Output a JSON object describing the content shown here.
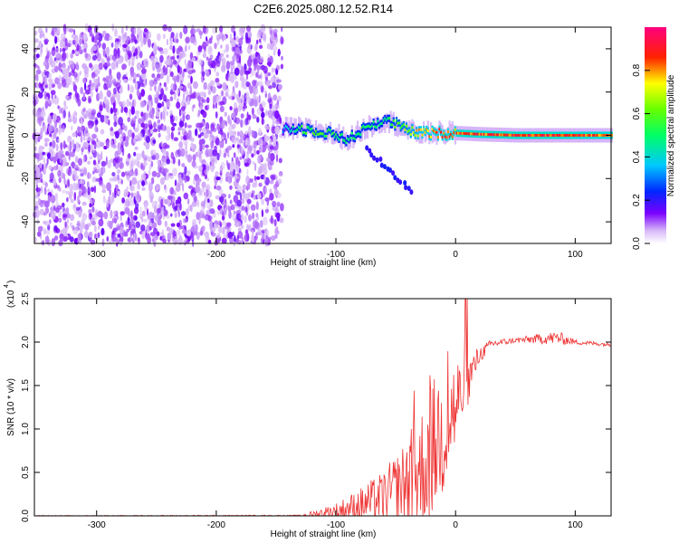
{
  "title": "C2E6.2025.080.12.52.R14",
  "chart_data": [
    {
      "type": "heatmap",
      "xlabel": "Height of straight line (km)",
      "ylabel": "Frequency (Hz)",
      "xlim": [
        -352,
        130
      ],
      "ylim": [
        -50,
        50
      ],
      "xticks": [
        -300,
        -200,
        -100,
        0,
        100
      ],
      "yticks": [
        -40,
        -20,
        0,
        20,
        40
      ],
      "colorbar": {
        "label": "Normalized spectral amplitude",
        "range": [
          0,
          1
        ],
        "ticks": [
          0.0,
          0.2,
          0.4,
          0.6,
          0.8
        ],
        "colormap": "white-purple-blue-cyan-green-yellow-red-magenta"
      },
      "noise_region_x": [
        -352,
        -145
      ],
      "ridge": [
        {
          "x": -145,
          "f": 3,
          "amp": 0.35
        },
        {
          "x": -130,
          "f": 3,
          "amp": 0.55
        },
        {
          "x": -115,
          "f": 2,
          "amp": 0.6
        },
        {
          "x": -100,
          "f": 0,
          "amp": 0.55
        },
        {
          "x": -90,
          "f": -2,
          "amp": 0.5
        },
        {
          "x": -80,
          "f": 2,
          "amp": 0.55
        },
        {
          "x": -70,
          "f": 5,
          "amp": 0.55
        },
        {
          "x": -60,
          "f": 7,
          "amp": 0.5
        },
        {
          "x": -50,
          "f": 5,
          "amp": 0.6
        },
        {
          "x": -40,
          "f": 2,
          "amp": 0.7
        },
        {
          "x": -30,
          "f": 1,
          "amp": 0.8
        },
        {
          "x": -20,
          "f": 1,
          "amp": 0.85
        },
        {
          "x": 0,
          "f": 1,
          "amp": 0.9
        },
        {
          "x": 20,
          "f": 0.5,
          "amp": 0.9
        },
        {
          "x": 50,
          "f": 0,
          "amp": 0.92
        },
        {
          "x": 80,
          "f": 0,
          "amp": 0.92
        },
        {
          "x": 110,
          "f": 0,
          "amp": 0.9
        },
        {
          "x": 130,
          "f": 0,
          "amp": 0.9
        }
      ]
    },
    {
      "type": "line",
      "xlabel": "Height of straight line (km)",
      "ylabel": "SNR (10 * v/v)",
      "y_multiplier_label": "(x10",
      "y_multiplier_exp": "4",
      "xlim": [
        -352,
        130
      ],
      "ylim": [
        0,
        2.5
      ],
      "xticks": [
        -300,
        -200,
        -100,
        0,
        100
      ],
      "yticks": [
        0.0,
        0.5,
        1.0,
        1.5,
        2.0,
        2.5
      ],
      "color": "#ee3333",
      "envelope": [
        {
          "x": -352,
          "y": 0.0,
          "spread": 0.005
        },
        {
          "x": -130,
          "y": 0.0,
          "spread": 0.01
        },
        {
          "x": -100,
          "y": 0.05,
          "spread": 0.1
        },
        {
          "x": -80,
          "y": 0.12,
          "spread": 0.2
        },
        {
          "x": -60,
          "y": 0.22,
          "spread": 0.3
        },
        {
          "x": -45,
          "y": 0.35,
          "spread": 0.45
        },
        {
          "x": -30,
          "y": 0.5,
          "spread": 0.7
        },
        {
          "x": -20,
          "y": 0.75,
          "spread": 0.8
        },
        {
          "x": -10,
          "y": 1.0,
          "spread": 0.8
        },
        {
          "x": 0,
          "y": 1.25,
          "spread": 0.6
        },
        {
          "x": 10,
          "y": 1.55,
          "spread": 0.3
        },
        {
          "x": 20,
          "y": 1.85,
          "spread": 0.1
        },
        {
          "x": 30,
          "y": 1.98,
          "spread": 0.05
        },
        {
          "x": 50,
          "y": 2.02,
          "spread": 0.03
        },
        {
          "x": 85,
          "y": 2.05,
          "spread": 0.08
        },
        {
          "x": 100,
          "y": 2.0,
          "spread": 0.03
        },
        {
          "x": 130,
          "y": 1.97,
          "spread": 0.02
        }
      ]
    }
  ]
}
